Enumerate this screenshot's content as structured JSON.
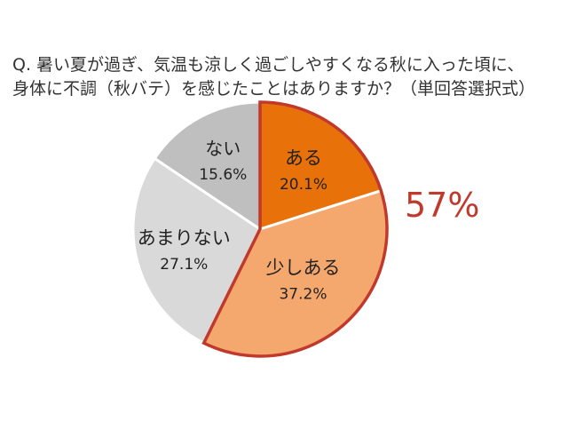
{
  "question": {
    "line1": "Q.  暑い夏が過ぎ、気温も涼しく過ごしやすくなる秋に入った頃に、",
    "line2": "身体に不調（秋バテ）を感じたことはありますか？（単回答選択式）"
  },
  "callout": {
    "text": "57%",
    "color": "#c0392b"
  },
  "chart_data": {
    "type": "pie",
    "title": "",
    "slices": [
      {
        "label": "ある",
        "value": 20.1,
        "value_label": "20.1%",
        "color": "#e8710a",
        "highlighted": true
      },
      {
        "label": "少しある",
        "value": 37.2,
        "value_label": "37.2%",
        "color": "#f5a86d",
        "highlighted": true
      },
      {
        "label": "あまりない",
        "value": 27.1,
        "value_label": "27.1%",
        "color": "#d9d9d9",
        "highlighted": false
      },
      {
        "label": "ない",
        "value": 15.6,
        "value_label": "15.6%",
        "color": "#bfbfbf",
        "highlighted": false
      }
    ],
    "start_angle": "12 o'clock",
    "direction": "clockwise",
    "highlight_outline_color": "#c0392b"
  }
}
